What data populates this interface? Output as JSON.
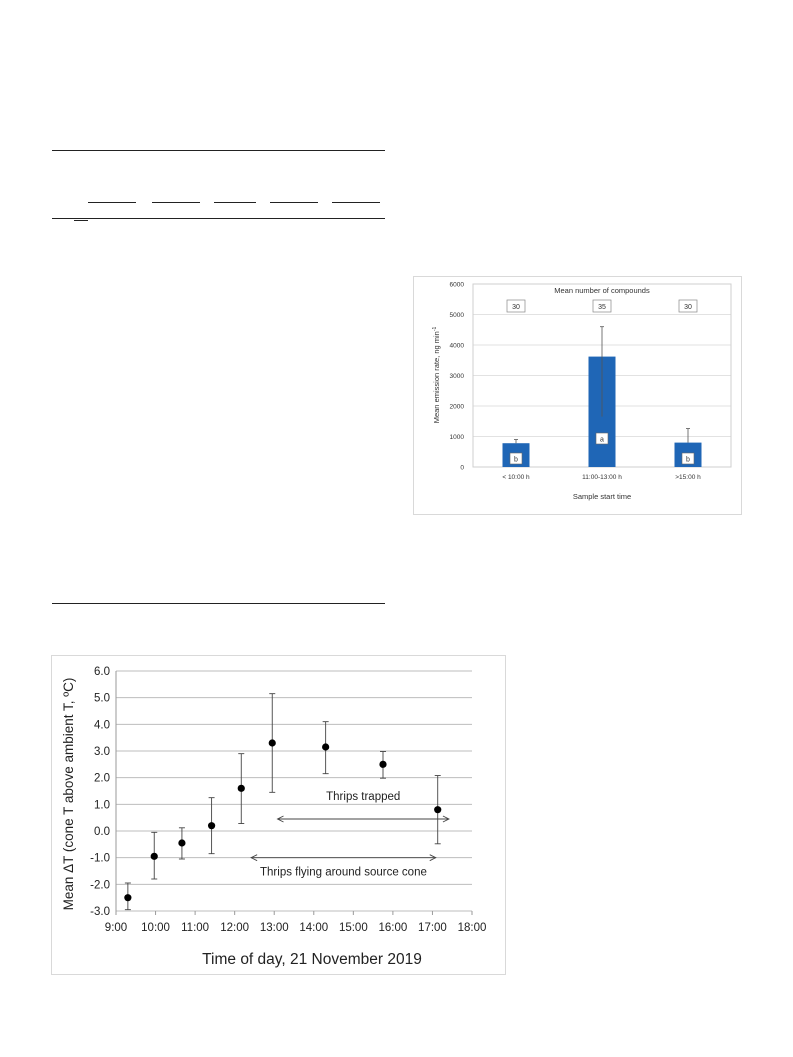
{
  "chart_data": [
    {
      "type": "bar",
      "title": "",
      "annotation_header": "Mean number of compounds",
      "categories": [
        "< 10:00 h",
        "11:00-13:00 h",
        ">15:00 h"
      ],
      "values": [
        780,
        3620,
        800
      ],
      "error_upper": [
        900,
        4600,
        1260
      ],
      "compound_counts": [
        "30",
        "35",
        "30"
      ],
      "significance_letters": [
        "b",
        "a",
        "b"
      ],
      "xlabel": "Sample start time",
      "ylabel": "Mean emission rate, ng min",
      "ylabel_superscript": "-1",
      "ylim": [
        0,
        6000
      ],
      "yticks": [
        "0",
        "1000",
        "2000",
        "3000",
        "4000",
        "5000",
        "6000"
      ],
      "bar_color": "#1f66b6",
      "grid": true
    },
    {
      "type": "scatter",
      "title": "",
      "x": [
        "9:18",
        "9:58",
        "10:40",
        "11:25",
        "12:10",
        "12:57",
        "14:18",
        "15:45",
        "17:08"
      ],
      "y": [
        -2.5,
        -0.95,
        -0.45,
        0.2,
        1.6,
        3.3,
        3.15,
        2.5,
        0.8
      ],
      "y_err_low": [
        -2.95,
        -1.8,
        -1.05,
        -0.85,
        0.28,
        1.45,
        2.15,
        1.98,
        -0.48
      ],
      "y_err_high": [
        -1.95,
        -0.05,
        0.12,
        1.25,
        2.9,
        5.15,
        4.1,
        2.98,
        2.08
      ],
      "xlabel": "Time of day, 21 November 2019",
      "ylabel": "Mean ΔT (cone T above ambient T, ºC)",
      "xticks": [
        "9:00",
        "10:00",
        "11:00",
        "12:00",
        "13:00",
        "14:00",
        "15:00",
        "16:00",
        "17:00",
        "18:00"
      ],
      "yticks": [
        "-3.0",
        "-2.0",
        "-1.0",
        "0.0",
        "1.0",
        "2.0",
        "3.0",
        "4.0",
        "5.0",
        "6.0"
      ],
      "ylim": [
        -3.0,
        6.0
      ],
      "grid": true,
      "annotations": [
        {
          "text": "Thrips trapped",
          "x_range": [
            "13:05",
            "17:25"
          ],
          "y": 0.45
        },
        {
          "text": "Thrips flying around source cone",
          "x_range": [
            "12:25",
            "17:05"
          ],
          "y": -1.0
        }
      ]
    }
  ]
}
